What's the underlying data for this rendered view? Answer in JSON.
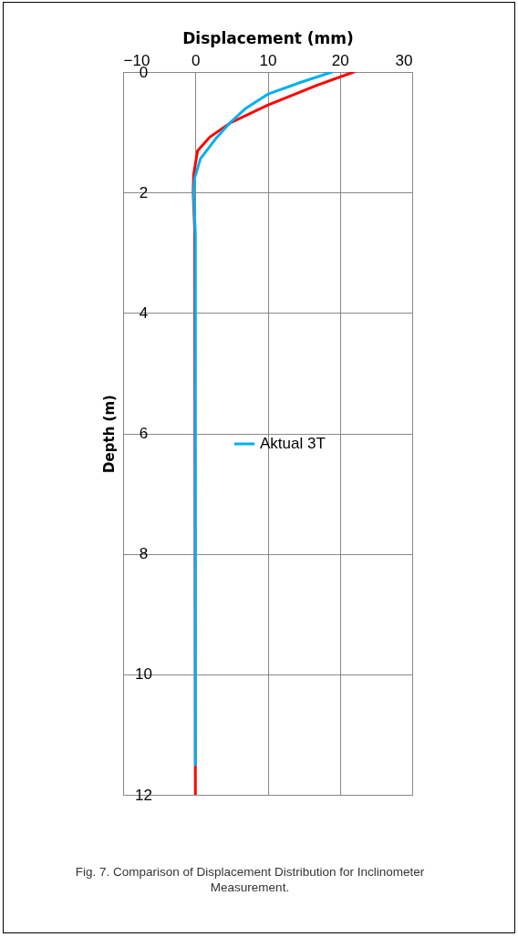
{
  "chart_data": {
    "type": "line",
    "xlabel": "Displacement (mm)",
    "ylabel": "Depth (m)",
    "annotations": [
      "Fig. 7. Comparison of Displacement Distribution for Inclinometer Measurement."
    ],
    "xlim": [
      -10,
      30
    ],
    "xticks": [
      -10,
      0,
      10,
      20,
      30
    ],
    "ylim": [
      12,
      0
    ],
    "yticks": [
      0,
      2,
      4,
      6,
      8,
      10,
      12
    ],
    "grid": true,
    "legend": "center",
    "marker": "none",
    "line_style": "solid",
    "series": [
      {
        "color": "#ff0000",
        "x": [
          21.9,
          16.8,
          10,
          4.9,
          2.0,
          0.3,
          -0.25,
          -0.3,
          -0.1,
          0
        ],
        "values": [
          0,
          0.22,
          0.55,
          0.84,
          1.08,
          1.31,
          1.71,
          2.0,
          2.6,
          12
        ]
      },
      {
        "name": "Aktual 3T",
        "color": "#00b0f0",
        "x": [
          18.9,
          14.6,
          10,
          7.0,
          4.9,
          2.8,
          0.7,
          -0.1,
          -0.25,
          0,
          0
        ],
        "values": [
          0,
          0.17,
          0.37,
          0.6,
          0.83,
          1.11,
          1.44,
          1.76,
          2.0,
          2.7,
          11.5
        ]
      }
    ]
  }
}
